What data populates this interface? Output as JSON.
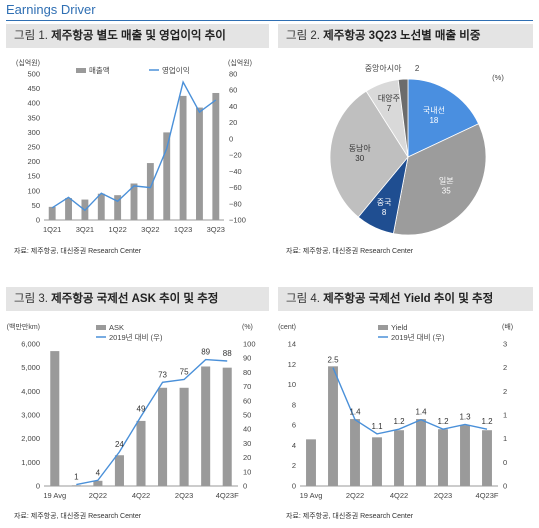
{
  "page": {
    "title": "Earnings Driver"
  },
  "panels": [
    {
      "label": "그림 1.",
      "title": "제주항공 별도 매출 및 영업이익 추이",
      "source": "자료: 제주항공, 대신증권 Research Center"
    },
    {
      "label": "그림 2.",
      "title": "제주항공 3Q23 노선별 매출 비중",
      "source": "자료: 제주항공, 대신증권 Research Center"
    },
    {
      "label": "그림 3.",
      "title": "제주항공 국제선 ASK 추이 및 추정",
      "source": "자료: 제주항공, 대신증권 Research Center"
    },
    {
      "label": "그림 4.",
      "title": "제주항공 국제선 Yield 추이 및 추정",
      "source": "자료: 제주항공, 대신증권 Research Center"
    }
  ],
  "chart_data": [
    {
      "type": "bar",
      "title": "제주항공 별도 매출 및 영업이익 추이",
      "y_unit_left": "(십억원)",
      "y_unit_right": "(십억원)",
      "categories": [
        "1Q21",
        "2Q21",
        "3Q21",
        "4Q21",
        "1Q22",
        "2Q22",
        "3Q22",
        "4Q22",
        "1Q23",
        "2Q23",
        "3Q23"
      ],
      "x_tick_labels": [
        "1Q21",
        "3Q21",
        "1Q22",
        "3Q22",
        "1Q23",
        "3Q23"
      ],
      "ylim_left": [
        0,
        500
      ],
      "yticks_left": [
        0,
        50,
        100,
        150,
        200,
        250,
        300,
        350,
        400,
        450,
        500
      ],
      "ylim_right": [
        -100,
        80
      ],
      "yticks_right": [
        -100,
        -80,
        -60,
        -40,
        -20,
        0,
        20,
        40,
        60,
        80
      ],
      "series": [
        {
          "name": "매출액",
          "kind": "bar",
          "axis": "left",
          "color": "#9a9a9a",
          "values": [
            45,
            75,
            70,
            90,
            85,
            125,
            195,
            300,
            425,
            385,
            435
          ]
        },
        {
          "name": "영업이익",
          "kind": "line",
          "axis": "right",
          "color": "#4a90d9",
          "values": [
            -85,
            -72,
            -88,
            -67,
            -77,
            -58,
            -60,
            -12,
            70,
            33,
            48
          ]
        }
      ],
      "legend": "top"
    },
    {
      "type": "pie",
      "title": "제주항공 3Q23 노선별 매출 비중",
      "unit": "(%)",
      "slices": [
        {
          "label": "국내선",
          "value": 18,
          "color": "#4a8fe0"
        },
        {
          "label": "일본",
          "value": 35,
          "color": "#9c9c9c"
        },
        {
          "label": "중국",
          "value": 8,
          "color": "#1f4e91"
        },
        {
          "label": "동남아",
          "value": 30,
          "color": "#bfbfbf"
        },
        {
          "label": "대양주",
          "value": 7,
          "color": "#d9d9d9"
        },
        {
          "label": "중앙아시아",
          "value": 2,
          "color": "#6c6c6c"
        }
      ],
      "start_angle_deg": 0,
      "direction": "clockwise"
    },
    {
      "type": "bar",
      "title": "제주항공 국제선 ASK 추이 및 추정",
      "y_unit_left": "(백만만km)",
      "y_unit_right": "(%)",
      "categories": [
        "19 Avg",
        "1Q22",
        "2Q22",
        "3Q22",
        "4Q22",
        "1Q23",
        "2Q23",
        "3Q23",
        "4Q23F"
      ],
      "x_tick_labels": [
        "19 Avg",
        "2Q22",
        "4Q22",
        "2Q23",
        "4Q23F"
      ],
      "ylim_left": [
        0,
        6000
      ],
      "yticks_left": [
        0,
        1000,
        2000,
        3000,
        4000,
        5000,
        6000
      ],
      "ylim_right": [
        0,
        100
      ],
      "yticks_right": [
        0,
        10,
        20,
        30,
        40,
        50,
        60,
        70,
        80,
        90,
        100
      ],
      "series": [
        {
          "name": "ASK",
          "kind": "bar",
          "axis": "left",
          "color": "#9a9a9a",
          "values": [
            5700,
            30,
            220,
            1300,
            2750,
            4150,
            4150,
            5050,
            5000
          ]
        },
        {
          "name": "2019년 대비 (우)",
          "kind": "line",
          "axis": "right",
          "color": "#4a90d9",
          "values": [
            null,
            1,
            4,
            24,
            49,
            73,
            75,
            89,
            88
          ]
        }
      ],
      "data_labels": [
        "1",
        "4",
        "24",
        "49",
        "73",
        "75",
        "89",
        "88"
      ],
      "legend": "top"
    },
    {
      "type": "bar",
      "title": "제주항공 국제선 Yield 추이 및 추정",
      "y_unit_left": "(cent)",
      "y_unit_right": "(배)",
      "categories": [
        "19 Avg",
        "1Q22",
        "2Q22",
        "3Q22",
        "4Q22",
        "1Q23",
        "2Q23",
        "3Q23",
        "4Q23F"
      ],
      "x_tick_labels": [
        "19 Avg",
        "2Q22",
        "4Q22",
        "2Q23",
        "4Q23F"
      ],
      "ylim_left": [
        0,
        14
      ],
      "yticks_left": [
        0,
        2,
        4,
        6,
        8,
        10,
        12,
        14
      ],
      "ylim_right": [
        0,
        3
      ],
      "yticks_right": [
        0,
        0.5,
        1,
        1.5,
        2,
        2.5,
        3
      ],
      "yticks_right_labels": [
        "0",
        "0",
        "1",
        "1",
        "2",
        "2",
        "3"
      ],
      "series": [
        {
          "name": "Yield",
          "kind": "bar",
          "axis": "left",
          "color": "#9a9a9a",
          "values": [
            4.6,
            11.8,
            6.6,
            4.8,
            5.5,
            6.6,
            5.6,
            6.0,
            5.5
          ]
        },
        {
          "name": "2019년 대비 (우)",
          "kind": "line",
          "axis": "right",
          "color": "#4a90d9",
          "values": [
            null,
            2.5,
            1.4,
            1.1,
            1.2,
            1.4,
            1.2,
            1.3,
            1.2
          ]
        }
      ],
      "data_labels": [
        "2.5",
        "1.4",
        "1.1",
        "1.2",
        "1.4",
        "1.2",
        "1.3",
        "1.2"
      ],
      "legend": "top"
    }
  ]
}
